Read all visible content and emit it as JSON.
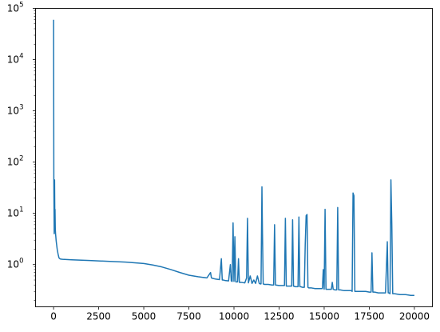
{
  "chart_data": {
    "type": "line",
    "title": "",
    "xlabel": "",
    "ylabel": "",
    "yscale": "log",
    "xlim": [
      -1000,
      21000
    ],
    "ylim": [
      0.15,
      100000
    ],
    "grid": false,
    "legend": "none",
    "line_color": "#1f77b4",
    "x_ticks": [
      {
        "value": 0,
        "label": "0"
      },
      {
        "value": 2500,
        "label": "2500"
      },
      {
        "value": 5000,
        "label": "5000"
      },
      {
        "value": 7500,
        "label": "7500"
      },
      {
        "value": 10000,
        "label": "10000"
      },
      {
        "value": 12500,
        "label": "12500"
      },
      {
        "value": 15000,
        "label": "15000"
      },
      {
        "value": 17500,
        "label": "17500"
      },
      {
        "value": 20000,
        "label": "20000"
      }
    ],
    "y_ticks": [
      {
        "value": 1,
        "base": "10",
        "exp": "0"
      },
      {
        "value": 10,
        "base": "10",
        "exp": "1"
      },
      {
        "value": 100,
        "base": "10",
        "exp": "2"
      },
      {
        "value": 1000,
        "base": "10",
        "exp": "3"
      },
      {
        "value": 10000,
        "base": "10",
        "exp": "4"
      },
      {
        "value": 100000,
        "base": "10",
        "exp": "5"
      }
    ],
    "series": [
      {
        "x": [
          0,
          15,
          35,
          55,
          70,
          80,
          95,
          110,
          125,
          140,
          160,
          200,
          250,
          300,
          350,
          400,
          500,
          1000,
          2000,
          3000,
          4000,
          5000,
          5500,
          6000,
          6500,
          7000,
          7500,
          8000,
          8500,
          8700,
          8750,
          8800,
          9000,
          9200,
          9300,
          9350,
          9400,
          9500,
          9700,
          9800,
          9850,
          9900,
          9950,
          10000,
          10050,
          10100,
          10200,
          10250,
          10300,
          10400,
          10600,
          10700,
          10750,
          10800,
          10900,
          11000,
          11100,
          11200,
          11300,
          11400,
          11450,
          11500,
          11550,
          11580,
          11620,
          11700,
          11900,
          12100,
          12200,
          12250,
          12300,
          12500,
          12700,
          12800,
          12850,
          12900,
          13000,
          13200,
          13250,
          13300,
          13400,
          13550,
          13600,
          13650,
          13700,
          13800,
          13900,
          13950,
          14000,
          14050,
          14100,
          14150,
          14200,
          14300,
          14500,
          14700,
          14900,
          14950,
          15000,
          15050,
          15100,
          15200,
          15400,
          15450,
          15500,
          15600,
          15700,
          15750,
          15800,
          15900,
          16100,
          16300,
          16500,
          16550,
          16600,
          16650,
          16700,
          16900,
          17100,
          17300,
          17500,
          17600,
          17650,
          17700,
          17800,
          18000,
          18200,
          18400,
          18500,
          18550,
          18600,
          18650,
          18700,
          18750,
          18800,
          18850,
          18900,
          19200,
          19500,
          19800,
          20000
        ],
        "y": [
          60000,
          40,
          4,
          45,
          8,
          12,
          5,
          4,
          3.5,
          3,
          2.6,
          2,
          1.6,
          1.35,
          1.3,
          1.28,
          1.27,
          1.24,
          1.2,
          1.16,
          1.12,
          1.05,
          0.98,
          0.9,
          0.8,
          0.7,
          0.62,
          0.58,
          0.55,
          0.7,
          0.55,
          0.54,
          0.52,
          0.51,
          1.3,
          0.5,
          0.5,
          0.49,
          0.48,
          1,
          0.48,
          0.47,
          6.5,
          0.47,
          3.5,
          0.46,
          0.46,
          1.3,
          0.45,
          0.45,
          0.44,
          0.55,
          8,
          0.44,
          0.6,
          0.43,
          0.5,
          0.43,
          0.6,
          0.43,
          0.42,
          0.42,
          33,
          4,
          0.42,
          0.41,
          0.41,
          0.4,
          0.4,
          6,
          0.4,
          0.39,
          0.39,
          0.39,
          8,
          0.38,
          0.38,
          0.38,
          7.5,
          0.38,
          0.37,
          0.37,
          8.5,
          0.37,
          0.37,
          0.36,
          0.36,
          2.5,
          9,
          9.5,
          0.36,
          0.35,
          0.35,
          0.35,
          0.34,
          0.34,
          0.34,
          0.8,
          0.33,
          12,
          0.33,
          0.33,
          0.33,
          0.45,
          0.33,
          0.32,
          0.32,
          13,
          0.32,
          0.32,
          0.31,
          0.31,
          0.31,
          0.3,
          25,
          22,
          0.3,
          0.3,
          0.3,
          0.3,
          0.29,
          0.29,
          1.7,
          0.29,
          0.29,
          0.28,
          0.28,
          0.28,
          2.8,
          0.28,
          0.28,
          0.27,
          45,
          6,
          0.27,
          0.27,
          0.27,
          0.26,
          0.26,
          0.25,
          0.25
        ]
      }
    ]
  }
}
